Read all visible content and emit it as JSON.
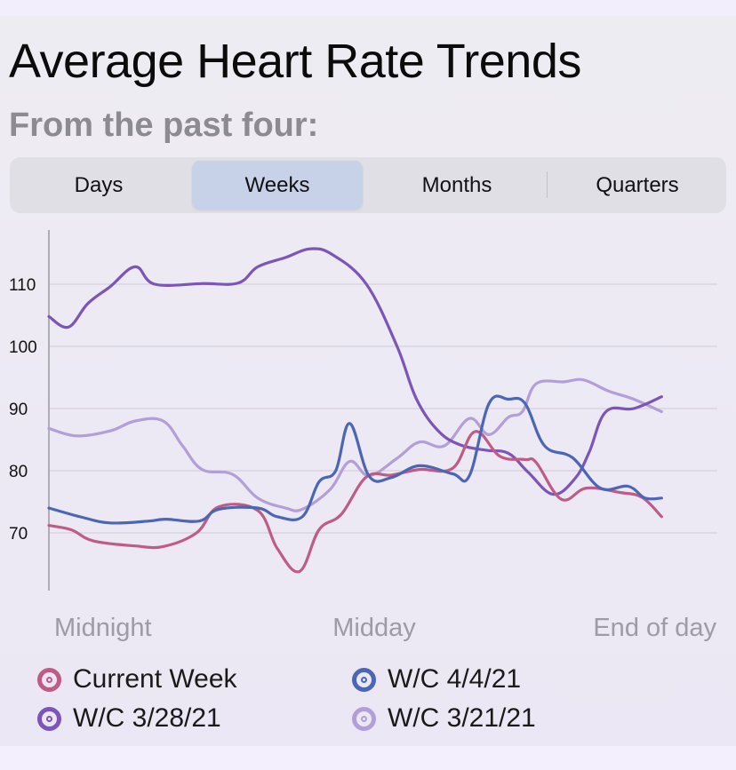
{
  "header": {
    "title": "Average Heart Rate Trends",
    "subtitle": "From the past four:"
  },
  "segments": {
    "selected": "Weeks",
    "items": [
      {
        "label": "Days"
      },
      {
        "label": "Weeks"
      },
      {
        "label": "Months"
      },
      {
        "label": "Quarters"
      }
    ]
  },
  "chart_data": {
    "type": "line",
    "title": "Average Heart Rate Trends",
    "subtitle": "From the past four:",
    "xlabel": "",
    "ylabel": "",
    "x_tick_labels": [
      "Midnight",
      "Midday",
      "End of day"
    ],
    "x_range": [
      0,
      24
    ],
    "ylim": [
      60,
      118
    ],
    "y_ticks": [
      70,
      80,
      90,
      100,
      110
    ],
    "grid": true,
    "legend_position": "bottom",
    "series": [
      {
        "name": "Current Week",
        "color": "#bf5c86",
        "points": [
          [
            0,
            71.2
          ],
          [
            0.8,
            70.5
          ],
          [
            1.6,
            68.7
          ],
          [
            3.1,
            67.9
          ],
          [
            4.1,
            67.8
          ],
          [
            5.3,
            70
          ],
          [
            6.1,
            74.2
          ],
          [
            7.5,
            73.6
          ],
          [
            8.2,
            67.5
          ],
          [
            9,
            63.8
          ],
          [
            9.7,
            70.5
          ],
          [
            10.5,
            73
          ],
          [
            11.4,
            79
          ],
          [
            12.3,
            79.3
          ],
          [
            13.3,
            80.2
          ],
          [
            14.5,
            80.4
          ],
          [
            15.3,
            86.3
          ],
          [
            16.2,
            82.3
          ],
          [
            17.1,
            81.8
          ],
          [
            17.5,
            81.3
          ],
          [
            18.4,
            75.4
          ],
          [
            19.3,
            77.2
          ],
          [
            20.5,
            76.5
          ],
          [
            21.3,
            75.7
          ],
          [
            22,
            72.6
          ]
        ]
      },
      {
        "name": "W/C 4/4/21",
        "color": "#4b66b3",
        "points": [
          [
            0,
            74
          ],
          [
            1.2,
            72.5
          ],
          [
            2.2,
            71.6
          ],
          [
            3.6,
            71.9
          ],
          [
            4.2,
            72.2
          ],
          [
            5.4,
            71.9
          ],
          [
            6.1,
            73.8
          ],
          [
            7.5,
            74
          ],
          [
            8.2,
            72.6
          ],
          [
            9.1,
            72.6
          ],
          [
            9.7,
            78.2
          ],
          [
            10.3,
            80
          ],
          [
            10.8,
            87.6
          ],
          [
            11.5,
            79.1
          ],
          [
            12.3,
            78.9
          ],
          [
            13.3,
            80.8
          ],
          [
            14.5,
            79.5
          ],
          [
            15.1,
            79.2
          ],
          [
            15.8,
            90.8
          ],
          [
            16.5,
            91.5
          ],
          [
            17.1,
            90.8
          ],
          [
            17.8,
            84
          ],
          [
            18.8,
            82.1
          ],
          [
            19.8,
            77.2
          ],
          [
            20.8,
            77.5
          ],
          [
            21.4,
            75.6
          ],
          [
            22,
            75.6
          ]
        ]
      },
      {
        "name": "W/C 3/28/21",
        "color": "#7c55b8",
        "points": [
          [
            0,
            104.8
          ],
          [
            0.7,
            103.1
          ],
          [
            1.4,
            106.9
          ],
          [
            2.2,
            109.6
          ],
          [
            3.1,
            112.8
          ],
          [
            3.8,
            110
          ],
          [
            5.5,
            110.1
          ],
          [
            6.8,
            110.2
          ],
          [
            7.5,
            112.8
          ],
          [
            8.5,
            114.3
          ],
          [
            9.4,
            115.7
          ],
          [
            10.2,
            114.7
          ],
          [
            11.4,
            110
          ],
          [
            12.5,
            100
          ],
          [
            13.2,
            91.5
          ],
          [
            14,
            86.3
          ],
          [
            14.8,
            84.1
          ],
          [
            15.7,
            83.3
          ],
          [
            16.5,
            82.8
          ],
          [
            17.2,
            79.8
          ],
          [
            18.1,
            76.2
          ],
          [
            18.9,
            78.8
          ],
          [
            19.4,
            83
          ],
          [
            20,
            89.5
          ],
          [
            21,
            90
          ],
          [
            22,
            91.9
          ]
        ]
      },
      {
        "name": "W/C 3/21/21",
        "color": "#b39fd7",
        "points": [
          [
            0,
            86.8
          ],
          [
            1,
            85.6
          ],
          [
            2.2,
            86.4
          ],
          [
            3.1,
            88
          ],
          [
            4.1,
            88
          ],
          [
            4.8,
            84
          ],
          [
            5.5,
            80.2
          ],
          [
            6.6,
            79.4
          ],
          [
            7.5,
            75.6
          ],
          [
            8.5,
            74
          ],
          [
            9.1,
            73.8
          ],
          [
            10.1,
            77
          ],
          [
            10.8,
            81.5
          ],
          [
            11.5,
            79.2
          ],
          [
            12.5,
            82
          ],
          [
            13.3,
            84.6
          ],
          [
            14.2,
            84
          ],
          [
            15.1,
            88.4
          ],
          [
            15.8,
            85.8
          ],
          [
            16.5,
            88.6
          ],
          [
            17,
            89.5
          ],
          [
            17.5,
            94
          ],
          [
            18.5,
            94.3
          ],
          [
            19.2,
            94.6
          ],
          [
            20.1,
            92.8
          ],
          [
            21,
            91.5
          ],
          [
            22,
            89.5
          ]
        ]
      }
    ]
  }
}
